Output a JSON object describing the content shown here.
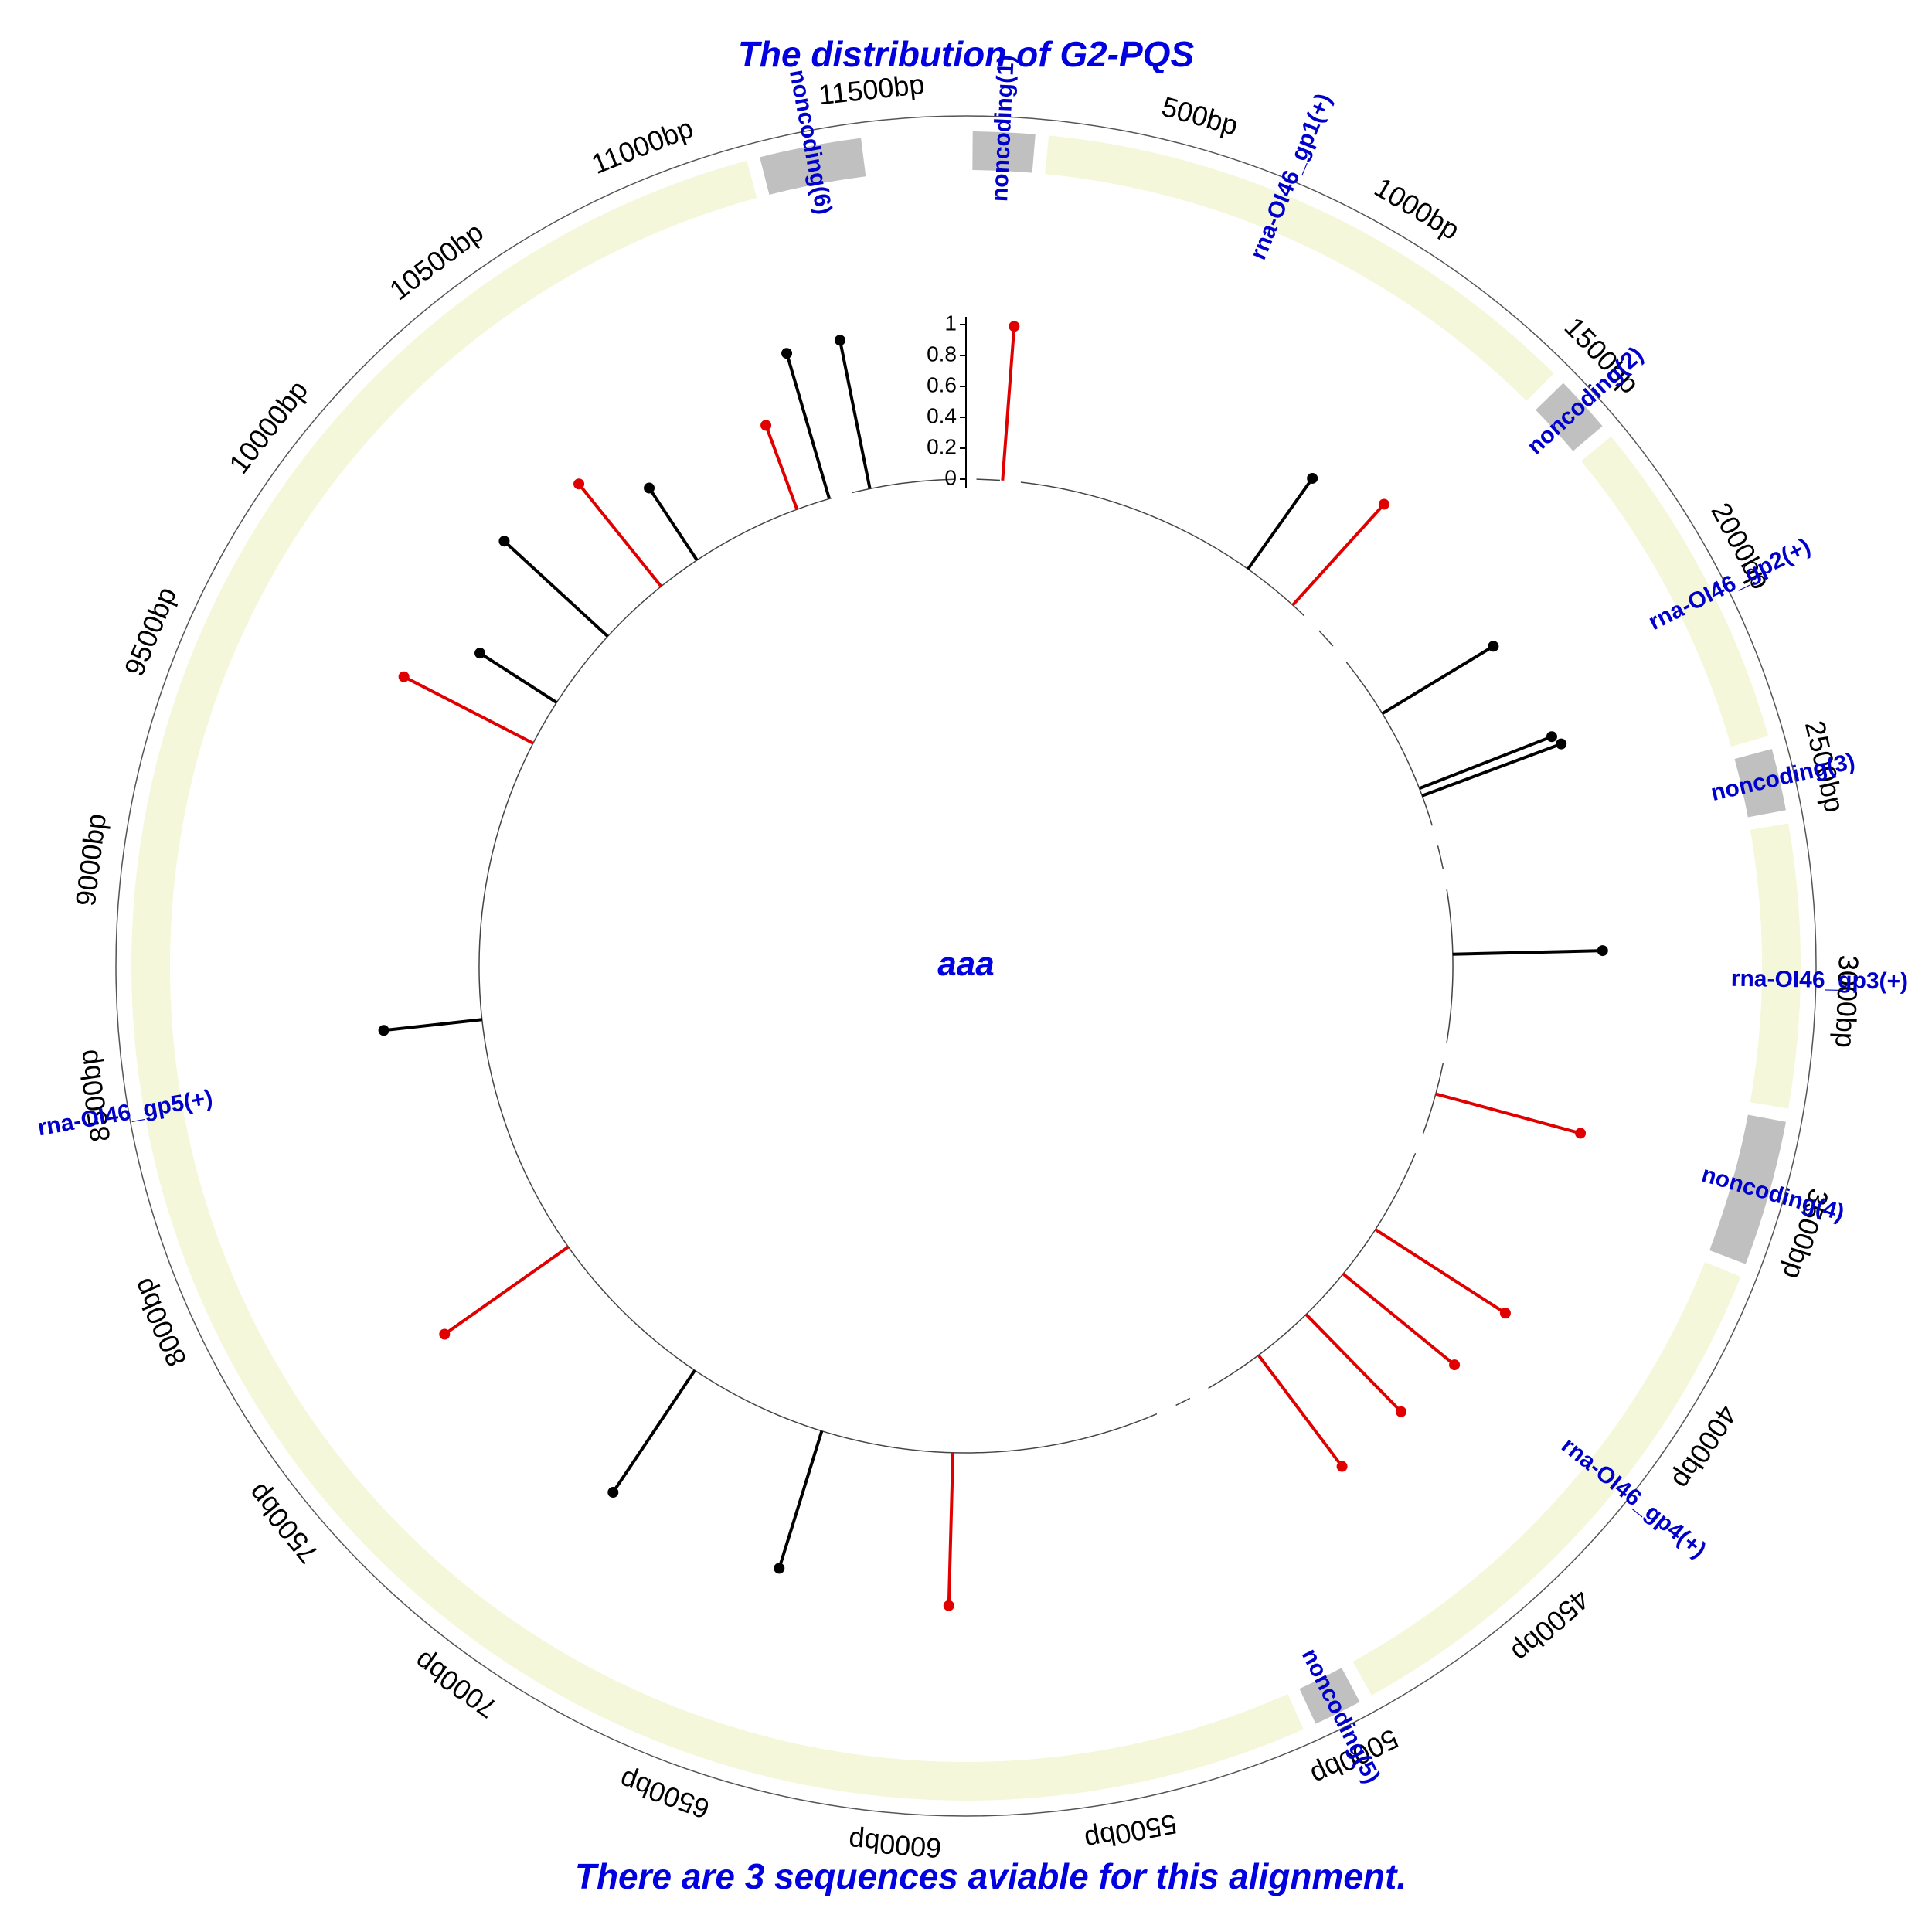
{
  "title": "The distribution of G2-PQS",
  "center_label": "aaa",
  "footer": "There are 3 sequences aviable for this alignment.",
  "genome_length_bp": 11700,
  "colors": {
    "title": "#0000e0",
    "label": "#0000cc",
    "coding": "#f5f7da",
    "noncoding": "#c0c0c0",
    "pqs_red": "#e00000",
    "pqs_black": "#000000"
  },
  "ticks": [
    "500bp",
    "1000bp",
    "1500bp",
    "2000bp",
    "2500bp",
    "3000bp",
    "3500bp",
    "4000bp",
    "4500bp",
    "5000bp",
    "5500bp",
    "6000bp",
    "6500bp",
    "7000bp",
    "7500bp",
    "8000bp",
    "8500bp",
    "9000bp",
    "9500bp",
    "10000bp",
    "10500bp",
    "11000bp",
    "11500bp"
  ],
  "tick_values": [
    500,
    1000,
    1500,
    2000,
    2500,
    3000,
    3500,
    4000,
    4500,
    5000,
    5500,
    6000,
    6500,
    7000,
    7500,
    8000,
    8500,
    9000,
    9500,
    10000,
    10500,
    11000,
    11500
  ],
  "regions": [
    {
      "label": "noncoding(1)",
      "type": "noncoding",
      "start": 0,
      "end": 170
    },
    {
      "label": "rna-OI46_gp1(+)",
      "type": "coding",
      "start": 170,
      "end": 1470
    },
    {
      "label": "noncoding(2)",
      "type": "noncoding",
      "start": 1470,
      "end": 1630
    },
    {
      "label": "rna-OI46_gp2(+)",
      "type": "coding",
      "start": 1630,
      "end": 2420
    },
    {
      "label": "noncoding(3)",
      "type": "noncoding",
      "start": 2420,
      "end": 2590
    },
    {
      "label": "rna-OI46_gp3(+)",
      "type": "coding",
      "start": 2590,
      "end": 3260
    },
    {
      "label": "noncoding(4)",
      "type": "noncoding",
      "start": 3260,
      "end": 3620
    },
    {
      "label": "rna-OI46_gp4(+)",
      "type": "coding",
      "start": 3620,
      "end": 4920
    },
    {
      "label": "noncoding(5)",
      "type": "noncoding",
      "start": 4920,
      "end": 5060
    },
    {
      "label": "rna-OI46_gp5(+)",
      "type": "coding",
      "start": 5060,
      "end": 11220
    },
    {
      "label": "noncoding(6)",
      "type": "noncoding",
      "start": 11220,
      "end": 11480
    }
  ],
  "scale_labels": [
    "0",
    "0.2",
    "0.4",
    "0.6",
    "0.8",
    "1"
  ],
  "scale_values": [
    0,
    0.2,
    0.4,
    0.6,
    0.8,
    1
  ],
  "pqs": [
    {
      "pos": 140,
      "value": 1.0,
      "color": "red"
    },
    {
      "pos": 1150,
      "value": 0.72,
      "color": "black"
    },
    {
      "pos": 1370,
      "value": 0.88,
      "color": "red"
    },
    {
      "pos": 1910,
      "value": 0.84,
      "color": "black"
    },
    {
      "pos": 2230,
      "value": 0.92,
      "color": "black"
    },
    {
      "pos": 2260,
      "value": 0.96,
      "color": "black"
    },
    {
      "pos": 2880,
      "value": 0.97,
      "color": "black"
    },
    {
      "pos": 3420,
      "value": 0.97,
      "color": "red"
    },
    {
      "pos": 3990,
      "value": 1.0,
      "color": "red"
    },
    {
      "pos": 4200,
      "value": 0.93,
      "color": "red"
    },
    {
      "pos": 4410,
      "value": 0.88,
      "color": "red"
    },
    {
      "pos": 4650,
      "value": 0.9,
      "color": "red"
    },
    {
      "pos": 5900,
      "value": 0.99,
      "color": "red"
    },
    {
      "pos": 6410,
      "value": 0.93,
      "color": "black"
    },
    {
      "pos": 6950,
      "value": 0.95,
      "color": "black"
    },
    {
      "pos": 7630,
      "value": 0.98,
      "color": "red"
    },
    {
      "pos": 8570,
      "value": 0.64,
      "color": "black"
    },
    {
      "pos": 9660,
      "value": 0.94,
      "color": "red"
    },
    {
      "pos": 9840,
      "value": 0.59,
      "color": "black"
    },
    {
      "pos": 10160,
      "value": 0.91,
      "color": "black"
    },
    {
      "pos": 10440,
      "value": 0.85,
      "color": "red"
    },
    {
      "pos": 10610,
      "value": 0.56,
      "color": "black"
    },
    {
      "pos": 11040,
      "value": 0.58,
      "color": "red"
    },
    {
      "pos": 11170,
      "value": 0.98,
      "color": "black"
    },
    {
      "pos": 11330,
      "value": 0.98,
      "color": "black"
    }
  ]
}
